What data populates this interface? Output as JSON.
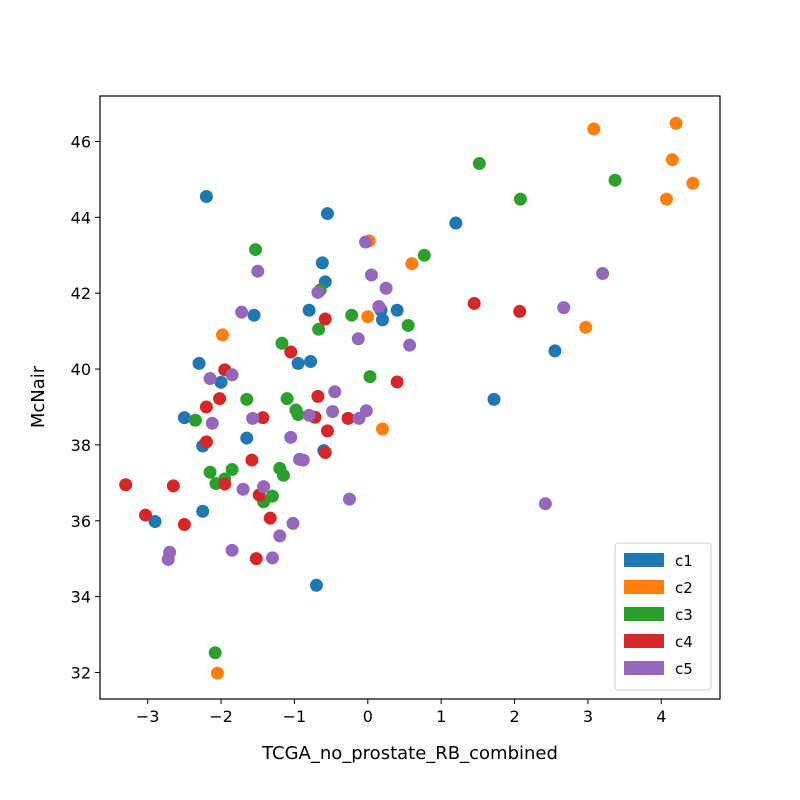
{
  "chart_data": {
    "type": "scatter",
    "title": "",
    "xlabel": "TCGA_no_prostate_RB_combined",
    "ylabel": "McNair",
    "xlim": [
      -3.65,
      4.8
    ],
    "ylim": [
      31.3,
      47.2
    ],
    "xticks": [
      -3,
      -2,
      -1,
      0,
      1,
      2,
      3,
      4
    ],
    "yticks": [
      32,
      34,
      36,
      38,
      40,
      42,
      44,
      46
    ],
    "xtick_labels": [
      "−3",
      "−2",
      "−1",
      "0",
      "1",
      "2",
      "3",
      "4"
    ],
    "ytick_labels": [
      "32",
      "34",
      "36",
      "38",
      "40",
      "42",
      "44",
      "46"
    ],
    "grid": false,
    "legend_position": "lower-right",
    "series": [
      {
        "name": "c1",
        "color": "#1f77b4",
        "points": [
          [
            -2.2,
            44.55
          ],
          [
            -0.55,
            44.1
          ],
          [
            1.2,
            43.85
          ],
          [
            -0.62,
            42.8
          ],
          [
            -0.58,
            42.3
          ],
          [
            -0.8,
            41.55
          ],
          [
            -1.55,
            41.42
          ],
          [
            0.18,
            41.55
          ],
          [
            0.4,
            41.55
          ],
          [
            0.2,
            41.3
          ],
          [
            -2.3,
            40.15
          ],
          [
            -0.95,
            40.15
          ],
          [
            -0.78,
            40.2
          ],
          [
            -2.0,
            39.65
          ],
          [
            2.55,
            40.48
          ],
          [
            -2.5,
            38.72
          ],
          [
            -2.25,
            37.97
          ],
          [
            -1.65,
            38.18
          ],
          [
            -0.6,
            37.85
          ],
          [
            1.72,
            39.2
          ],
          [
            -2.25,
            36.25
          ],
          [
            -2.9,
            35.98
          ],
          [
            -0.7,
            34.3
          ]
        ]
      },
      {
        "name": "c2",
        "color": "#ff7f0e",
        "points": [
          [
            3.08,
            46.33
          ],
          [
            4.2,
            46.48
          ],
          [
            4.15,
            45.52
          ],
          [
            4.43,
            44.9
          ],
          [
            4.07,
            44.48
          ],
          [
            0.02,
            43.38
          ],
          [
            0.6,
            42.78
          ],
          [
            0.0,
            41.38
          ],
          [
            2.97,
            41.1
          ],
          [
            -1.98,
            40.9
          ],
          [
            0.2,
            38.42
          ],
          [
            -2.05,
            31.98
          ]
        ]
      },
      {
        "name": "c3",
        "color": "#2ca02c",
        "points": [
          [
            1.52,
            45.42
          ],
          [
            3.37,
            44.98
          ],
          [
            2.08,
            44.48
          ],
          [
            0.77,
            43.0
          ],
          [
            -1.53,
            43.15
          ],
          [
            -0.65,
            42.08
          ],
          [
            -0.22,
            41.42
          ],
          [
            0.55,
            41.15
          ],
          [
            -0.67,
            41.05
          ],
          [
            -1.17,
            40.68
          ],
          [
            0.03,
            39.8
          ],
          [
            -1.65,
            39.2
          ],
          [
            -1.1,
            39.22
          ],
          [
            -0.98,
            38.92
          ],
          [
            -0.95,
            38.8
          ],
          [
            -2.35,
            38.65
          ],
          [
            -1.2,
            37.38
          ],
          [
            -1.15,
            37.2
          ],
          [
            -2.15,
            37.28
          ],
          [
            -1.85,
            37.35
          ],
          [
            -1.95,
            37.1
          ],
          [
            -2.07,
            36.98
          ],
          [
            -1.3,
            36.65
          ],
          [
            -1.42,
            36.5
          ],
          [
            -2.08,
            32.52
          ]
        ]
      },
      {
        "name": "c4",
        "color": "#d62728",
        "points": [
          [
            1.45,
            41.73
          ],
          [
            2.07,
            41.52
          ],
          [
            -0.58,
            41.32
          ],
          [
            -1.05,
            40.45
          ],
          [
            -1.95,
            39.98
          ],
          [
            -0.68,
            39.28
          ],
          [
            0.4,
            39.66
          ],
          [
            -2.2,
            39.0
          ],
          [
            -2.02,
            39.22
          ],
          [
            -1.43,
            38.72
          ],
          [
            -0.72,
            38.73
          ],
          [
            -0.27,
            38.7
          ],
          [
            -0.55,
            38.37
          ],
          [
            -2.2,
            38.08
          ],
          [
            -0.58,
            37.8
          ],
          [
            -1.58,
            37.6
          ],
          [
            -1.95,
            36.97
          ],
          [
            -2.65,
            36.92
          ],
          [
            -3.3,
            36.95
          ],
          [
            -3.03,
            36.15
          ],
          [
            -1.48,
            36.68
          ],
          [
            -1.33,
            36.07
          ],
          [
            -2.5,
            35.9
          ],
          [
            -1.52,
            35.0
          ]
        ]
      },
      {
        "name": "c5",
        "color": "#9467bd",
        "points": [
          [
            -0.03,
            43.35
          ],
          [
            0.05,
            42.48
          ],
          [
            -1.5,
            42.58
          ],
          [
            3.2,
            42.52
          ],
          [
            0.25,
            42.13
          ],
          [
            -0.68,
            42.02
          ],
          [
            0.15,
            41.65
          ],
          [
            2.67,
            41.62
          ],
          [
            -1.72,
            41.5
          ],
          [
            -0.13,
            40.8
          ],
          [
            0.57,
            40.63
          ],
          [
            -1.85,
            39.85
          ],
          [
            -2.15,
            39.75
          ],
          [
            -0.45,
            39.4
          ],
          [
            -2.12,
            38.57
          ],
          [
            -1.57,
            38.7
          ],
          [
            -0.8,
            38.78
          ],
          [
            -0.48,
            38.88
          ],
          [
            -0.12,
            38.7
          ],
          [
            -0.02,
            38.9
          ],
          [
            -1.05,
            38.2
          ],
          [
            -0.93,
            37.62
          ],
          [
            -0.88,
            37.6
          ],
          [
            -1.42,
            36.9
          ],
          [
            -1.7,
            36.83
          ],
          [
            -0.25,
            36.57
          ],
          [
            2.42,
            36.45
          ],
          [
            -1.02,
            35.93
          ],
          [
            -1.2,
            35.6
          ],
          [
            -1.85,
            35.22
          ],
          [
            -1.3,
            35.02
          ],
          [
            -2.7,
            35.17
          ],
          [
            -2.72,
            34.98
          ]
        ]
      }
    ]
  }
}
